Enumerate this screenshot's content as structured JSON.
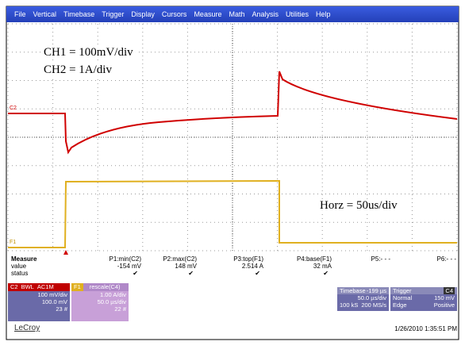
{
  "menu": [
    "File",
    "Vertical",
    "Timebase",
    "Trigger",
    "Display",
    "Cursors",
    "Measure",
    "Math",
    "Analysis",
    "Utilities",
    "Help"
  ],
  "screen": {
    "annotations": [
      "CH1 = 100mV/div",
      "CH2 = 1A/div",
      "Horz = 50us/div"
    ],
    "trace_labels": [
      "C2",
      "F1"
    ]
  },
  "measure": {
    "row_labels": [
      "Measure",
      "value",
      "status"
    ],
    "columns": [
      {
        "name": "P1:min(C2)",
        "value": "-154 mV",
        "status": "✔"
      },
      {
        "name": "P2:max(C2)",
        "value": "148 mV",
        "status": "✔"
      },
      {
        "name": "P3:top(F1)",
        "value": "2.514 A",
        "status": "✔"
      },
      {
        "name": "P4:base(F1)",
        "value": "32 mA",
        "status": "✔"
      },
      {
        "name": "P5:- - -"
      },
      {
        "name": "P6:- - -"
      }
    ]
  },
  "channels": [
    {
      "label": "C2",
      "tags": [
        "BWL",
        "AC1M"
      ],
      "lines": [
        "100 mV/div",
        "100.0 mV",
        "23 #"
      ]
    },
    {
      "label": "F1",
      "source": "rescale(C4)",
      "lines": [
        "1.00 A/div",
        "50.0 µs/div",
        "22 #"
      ]
    }
  ],
  "timebase": {
    "label": "Timebase",
    "offset": "-199 µs",
    "lines": [
      [
        "50.0 µs/div"
      ],
      [
        "100 kS",
        "200 MS/s"
      ]
    ]
  },
  "trigger": {
    "label": "Trigger",
    "source": "C4",
    "lines": [
      [
        "Normal",
        "150 mV"
      ],
      [
        "Edge",
        "Positive"
      ]
    ]
  },
  "brand": "LeCroy",
  "timestamp": "1/26/2010 1:35:51 PM"
}
